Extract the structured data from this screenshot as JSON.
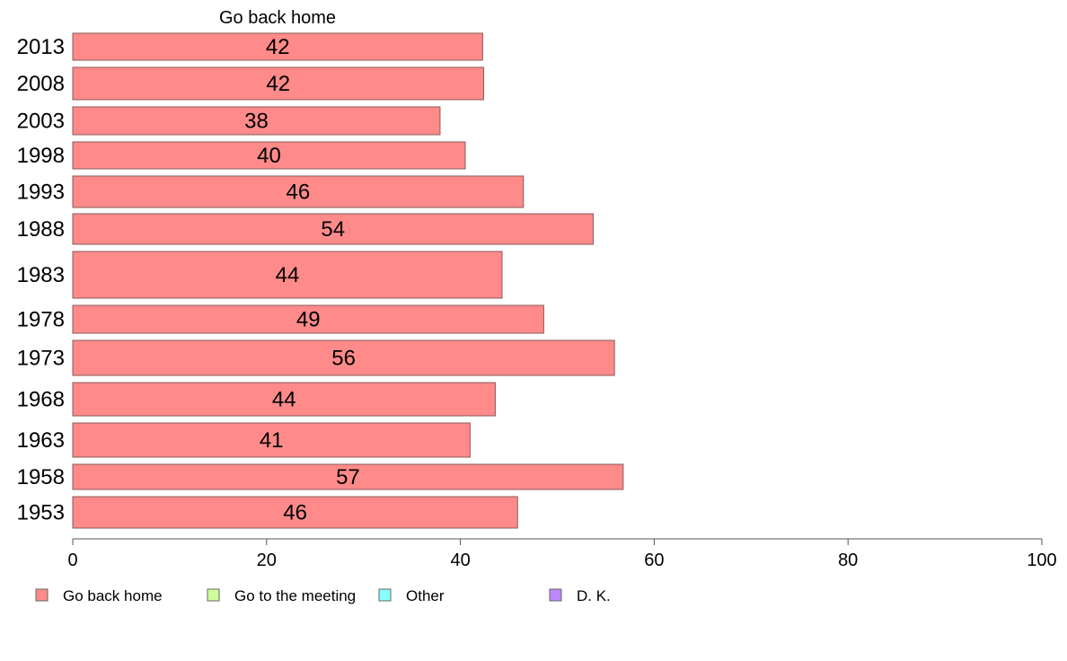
{
  "chart_data": {
    "type": "bar",
    "orientation": "horizontal",
    "title": "Go back home",
    "categories": [
      "2013",
      "2008",
      "2003",
      "1998",
      "1993",
      "1988",
      "1983",
      "1978",
      "1973",
      "1968",
      "1963",
      "1958",
      "1953"
    ],
    "series": [
      {
        "name": "Go back home",
        "values": [
          42,
          42,
          38,
          40,
          46,
          54,
          44,
          49,
          56,
          44,
          41,
          57,
          46
        ],
        "labels": [
          "42",
          "42",
          "38",
          "40",
          "46",
          "54",
          "44",
          "49",
          "56",
          "44",
          "41",
          "57",
          "46"
        ],
        "exact_values": [
          42.3,
          42.4,
          37.9,
          40.5,
          46.5,
          53.7,
          44.3,
          48.6,
          55.9,
          43.6,
          41.0,
          56.8,
          45.9
        ],
        "color": "#ff8a8a"
      }
    ],
    "xlim": [
      0,
      100
    ],
    "xticks": [
      "0",
      "20",
      "40",
      "60",
      "80",
      "100"
    ],
    "grid": false,
    "legend": {
      "placement": "bottom",
      "entries": [
        {
          "label": "Go back home",
          "color": "#ff8a8a"
        },
        {
          "label": "Go to the meeting",
          "color": "#ccff99"
        },
        {
          "label": "Other",
          "color": "#88ffff"
        },
        {
          "label": "D. K.",
          "color": "#bb88ff"
        }
      ]
    }
  }
}
